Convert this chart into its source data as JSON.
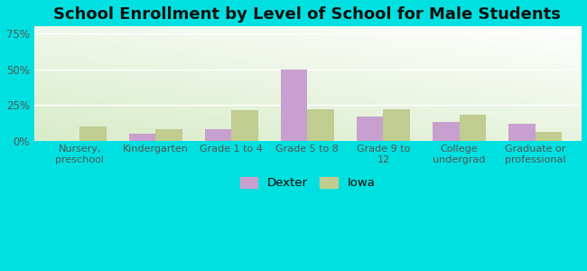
{
  "title": "School Enrollment by Level of School for Male Students",
  "categories": [
    "Nursery,\npreschool",
    "Kindergarten",
    "Grade 1 to 4",
    "Grade 5 to 8",
    "Grade 9 to\n12",
    "College\nundergrad",
    "Graduate or\nprofessional"
  ],
  "dexter_values": [
    0.0,
    5.0,
    8.0,
    50.0,
    17.0,
    13.0,
    12.0
  ],
  "iowa_values": [
    10.0,
    8.0,
    21.0,
    22.0,
    22.0,
    18.0,
    6.0
  ],
  "dexter_color": "#c8a0d0",
  "iowa_color": "#c0cc90",
  "background_outer": "#00e0e0",
  "title_fontsize": 13,
  "ylabel_ticks": [
    "0%",
    "25%",
    "50%",
    "75%"
  ],
  "ytick_vals": [
    0,
    25,
    50,
    75
  ],
  "ylim": [
    0,
    80
  ],
  "legend_labels": [
    "Dexter",
    "Iowa"
  ],
  "bar_width": 0.35
}
